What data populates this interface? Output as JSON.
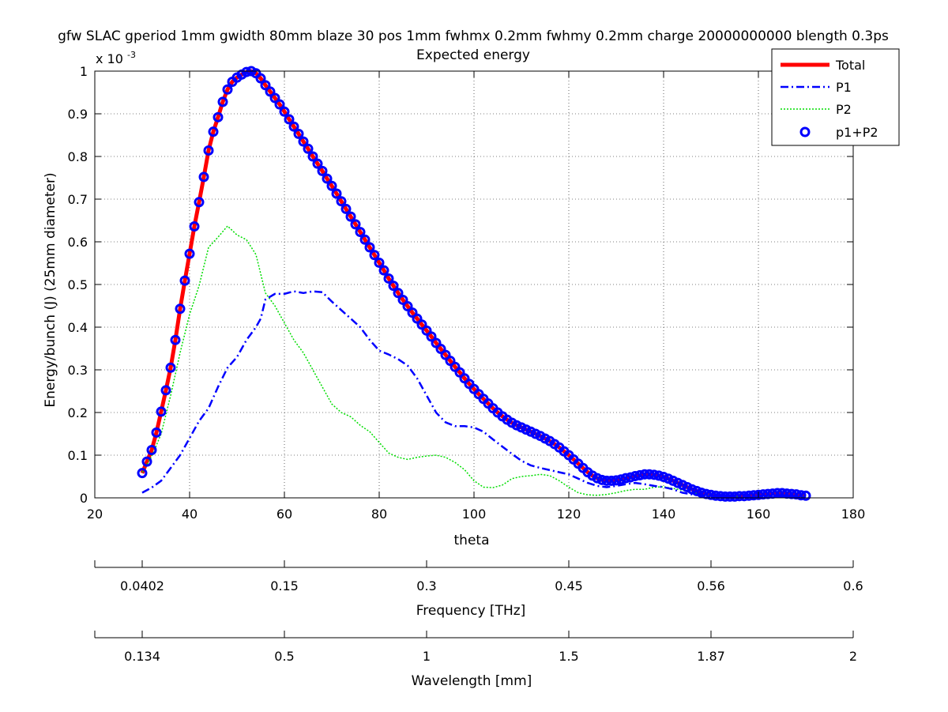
{
  "chart_data": {
    "type": "line",
    "title": "gfw SLAC gperiod 1mm gwidth 80mm blaze 30 pos 1mm fwhmx 0.2mm fwhmy 0.2mm charge 20000000000 blength 0.3ps",
    "subtitle": "Expected energy",
    "xlabel": "theta",
    "ylabel": "Energy/bunch (J) (25mm diameter)",
    "y_multiplier": "x 10",
    "y_multiplier_exp": "-3",
    "xlim": [
      20,
      180
    ],
    "ylim": [
      0,
      0.001
    ],
    "x_ticks": [
      "20",
      "40",
      "60",
      "80",
      "100",
      "120",
      "140",
      "160",
      "180"
    ],
    "y_ticks": [
      "0",
      "0.1",
      "0.2",
      "0.3",
      "0.4",
      "0.5",
      "0.6",
      "0.7",
      "0.8",
      "0.9",
      "1"
    ],
    "grid": true,
    "legend_position": "top-right",
    "series": [
      {
        "name": "Total",
        "color": "#ff0000",
        "style": "solid",
        "x": [
          30,
          31,
          32,
          33,
          34,
          35,
          36,
          37,
          38,
          39,
          40,
          41,
          42,
          43,
          44,
          45,
          46,
          47,
          48,
          49,
          50,
          51,
          52,
          53,
          54,
          55,
          56,
          57,
          58,
          59,
          60,
          61,
          62,
          63,
          64,
          65,
          66,
          67,
          68,
          69,
          70,
          71,
          72,
          73,
          74,
          75,
          76,
          77,
          78,
          79,
          80,
          81,
          82,
          83,
          84,
          85,
          86,
          87,
          88,
          89,
          90,
          91,
          92,
          93,
          94,
          95,
          96,
          97,
          98,
          99,
          100,
          101,
          102,
          103,
          104,
          105,
          106,
          107,
          108,
          109,
          110,
          111,
          112,
          113,
          114,
          115,
          116,
          117,
          118,
          119,
          120,
          121,
          122,
          123,
          124,
          125,
          126,
          127,
          128,
          129,
          130,
          131,
          132,
          133,
          134,
          135,
          136,
          137,
          138,
          139,
          140,
          141,
          142,
          143,
          144,
          145,
          146,
          147,
          148,
          149,
          150,
          151,
          152,
          153,
          154,
          155,
          156,
          157,
          158,
          159,
          160,
          161,
          162,
          163,
          164,
          165,
          166,
          167,
          168,
          169,
          170
        ],
        "values": [
          5.8e-05,
          8.5e-05,
          0.000112,
          0.000153,
          0.000202,
          0.000252,
          0.000305,
          0.00037,
          0.000443,
          0.000509,
          0.000572,
          0.000636,
          0.000693,
          0.000752,
          0.000814,
          0.000858,
          0.000892,
          0.000928,
          0.000957,
          0.000975,
          0.000985,
          0.000992,
          0.000998,
          0.001,
          0.000995,
          0.000983,
          0.000967,
          0.000952,
          0.000937,
          0.000922,
          0.000905,
          0.000887,
          0.00087,
          0.000853,
          0.000835,
          0.000818,
          0.0008,
          0.000783,
          0.000766,
          0.000748,
          0.000731,
          0.000713,
          0.000695,
          0.000677,
          0.000659,
          0.000641,
          0.000623,
          0.000605,
          0.000587,
          0.000569,
          0.000551,
          0.000533,
          0.000514,
          0.000497,
          0.00048,
          0.000464,
          0.000449,
          0.000434,
          0.00042,
          0.000406,
          0.000392,
          0.000378,
          0.000363,
          0.000349,
          0.000335,
          0.000321,
          0.000307,
          0.000294,
          0.00028,
          0.000267,
          0.000255,
          0.000243,
          0.000232,
          0.000221,
          0.00021,
          0.0002,
          0.000191,
          0.000183,
          0.000176,
          0.00017,
          0.000165,
          0.00016,
          0.000155,
          0.00015,
          0.000145,
          0.000139,
          0.000133,
          0.000126,
          0.000118,
          0.000109,
          0.0001,
          9e-05,
          8e-05,
          7e-05,
          6e-05,
          5.2e-05,
          4.6e-05,
          4.2e-05,
          4e-05,
          4e-05,
          4.1e-05,
          4.3e-05,
          4.6e-05,
          4.8e-05,
          5.1e-05,
          5.3e-05,
          5.5e-05,
          5.5e-05,
          5.4e-05,
          5.2e-05,
          4.9e-05,
          4.5e-05,
          4e-05,
          3.5e-05,
          3e-05,
          2.5e-05,
          2e-05,
          1.6e-05,
          1.2e-05,
          9e-06,
          7e-06,
          5e-06,
          4e-06,
          3e-06,
          3e-06,
          3e-06,
          4e-06,
          4e-06,
          5e-06,
          6e-06,
          7e-06,
          8e-06,
          9e-06,
          1e-05,
          1.1e-05,
          1.1e-05,
          1e-05,
          9e-06,
          8e-06,
          6e-06,
          5e-06
        ]
      },
      {
        "name": "P1",
        "color": "#0000ff",
        "style": "dashdot",
        "x": [
          30,
          32,
          34,
          36,
          38,
          40,
          42,
          44,
          46,
          48,
          50,
          52,
          54,
          55,
          56,
          58,
          60,
          62,
          64,
          66,
          68,
          70,
          72,
          74,
          76,
          78,
          80,
          82,
          84,
          86,
          88,
          90,
          92,
          94,
          96,
          98,
          100,
          102,
          104,
          106,
          108,
          110,
          112,
          114,
          116,
          118,
          120,
          122,
          124,
          126,
          128,
          130,
          132,
          134,
          136,
          138,
          140,
          142,
          144,
          146,
          148,
          150,
          152,
          154,
          156,
          158,
          160,
          162,
          164,
          166,
          168,
          170
        ],
        "values": [
          1.2e-05,
          2.4e-05,
          4e-05,
          7e-05,
          0.0001,
          0.00014,
          0.00018,
          0.00021,
          0.00026,
          0.000305,
          0.00033,
          0.00037,
          0.0004,
          0.00042,
          0.000465,
          0.000478,
          0.000478,
          0.000484,
          0.00048,
          0.000484,
          0.000482,
          0.00046,
          0.00044,
          0.00042,
          0.0004,
          0.00037,
          0.000345,
          0.000336,
          0.000325,
          0.00031,
          0.00028,
          0.00024,
          0.0002,
          0.000177,
          0.000168,
          0.000168,
          0.000165,
          0.000155,
          0.000137,
          0.00012,
          0.000103,
          8.7e-05,
          7.6e-05,
          7e-05,
          6.5e-05,
          6e-05,
          5.5e-05,
          4.5e-05,
          3.5e-05,
          2.8e-05,
          2.5e-05,
          2.8e-05,
          3.2e-05,
          3.5e-05,
          3.2e-05,
          2.8e-05,
          2.5e-05,
          2e-05,
          1.2e-05,
          8e-06,
          6e-06,
          5e-06,
          4e-06,
          4e-06,
          4e-06,
          4e-06,
          5e-06,
          5e-06,
          5e-06,
          5e-06,
          4e-06,
          3e-06
        ]
      },
      {
        "name": "P2",
        "color": "#00dd00",
        "style": "dotted",
        "x": [
          30,
          32,
          34,
          36,
          38,
          40,
          42,
          44,
          46,
          48,
          50,
          52,
          54,
          56,
          58,
          60,
          62,
          64,
          66,
          68,
          70,
          72,
          74,
          76,
          78,
          80,
          82,
          84,
          86,
          88,
          90,
          92,
          94,
          96,
          98,
          100,
          102,
          104,
          106,
          108,
          110,
          112,
          114,
          116,
          118,
          120,
          122,
          124,
          126,
          128,
          130,
          132,
          134,
          136,
          138,
          140,
          142,
          144,
          146,
          148,
          150,
          152,
          154,
          156,
          158,
          160,
          162,
          164,
          166,
          168,
          170
        ],
        "values": [
          6e-05,
          9.7e-05,
          0.00015,
          0.00024,
          0.00034,
          0.00043,
          0.000497,
          0.000587,
          0.000611,
          0.000637,
          0.000616,
          0.000605,
          0.00057,
          0.00048,
          0.00045,
          0.00041,
          0.00037,
          0.00034,
          0.0003,
          0.00026,
          0.00022,
          0.0002,
          0.00019,
          0.00017,
          0.000155,
          0.00013,
          0.000105,
          9.5e-05,
          9e-05,
          9.5e-05,
          9.8e-05,
          0.0001,
          9.5e-05,
          8.3e-05,
          6.6e-05,
          4e-05,
          2.5e-05,
          2.4e-05,
          3e-05,
          4.5e-05,
          5e-05,
          5.2e-05,
          5.5e-05,
          5.2e-05,
          4e-05,
          2.5e-05,
          1.2e-05,
          7e-06,
          6e-06,
          8e-06,
          1.2e-05,
          1.7e-05,
          2e-05,
          2e-05,
          2.5e-05,
          2.6e-05,
          2.2e-05,
          1.8e-05,
          1.2e-05,
          8e-06,
          5e-06,
          4e-06,
          3e-06,
          3e-06,
          3e-06,
          3e-06,
          3e-06,
          3e-06,
          3e-06,
          3e-06,
          3e-06
        ]
      },
      {
        "name": "p1+P2",
        "color": "#0000ff",
        "style": "markers",
        "x": [
          30,
          31,
          32,
          33,
          34,
          35,
          36,
          37,
          38,
          39,
          40,
          41,
          42,
          43,
          44,
          45,
          46,
          47,
          48,
          49,
          50,
          51,
          52,
          53,
          54,
          55,
          56,
          57,
          58,
          59,
          60,
          61,
          62,
          63,
          64,
          65,
          66,
          67,
          68,
          69,
          70,
          71,
          72,
          73,
          74,
          75,
          76,
          77,
          78,
          79,
          80,
          81,
          82,
          83,
          84,
          85,
          86,
          87,
          88,
          89,
          90,
          91,
          92,
          93,
          94,
          95,
          96,
          97,
          98,
          99,
          100,
          101,
          102,
          103,
          104,
          105,
          106,
          107,
          108,
          109,
          110,
          111,
          112,
          113,
          114,
          115,
          116,
          117,
          118,
          119,
          120,
          121,
          122,
          123,
          124,
          125,
          126,
          127,
          128,
          129,
          130,
          131,
          132,
          133,
          134,
          135,
          136,
          137,
          138,
          139,
          140,
          141,
          142,
          143,
          144,
          145,
          146,
          147,
          148,
          149,
          150,
          151,
          152,
          153,
          154,
          155,
          156,
          157,
          158,
          159,
          160,
          161,
          162,
          163,
          164,
          165,
          166,
          167,
          168,
          169,
          170
        ],
        "values": [
          5.8e-05,
          8.5e-05,
          0.000112,
          0.000153,
          0.000202,
          0.000252,
          0.000305,
          0.00037,
          0.000443,
          0.000509,
          0.000572,
          0.000636,
          0.000693,
          0.000752,
          0.000814,
          0.000858,
          0.000892,
          0.000928,
          0.000957,
          0.000975,
          0.000985,
          0.000992,
          0.000998,
          0.001,
          0.000995,
          0.000983,
          0.000967,
          0.000952,
          0.000937,
          0.000922,
          0.000905,
          0.000887,
          0.00087,
          0.000853,
          0.000835,
          0.000818,
          0.0008,
          0.000783,
          0.000766,
          0.000748,
          0.000731,
          0.000713,
          0.000695,
          0.000677,
          0.000659,
          0.000641,
          0.000623,
          0.000605,
          0.000587,
          0.000569,
          0.000551,
          0.000533,
          0.000514,
          0.000497,
          0.00048,
          0.000464,
          0.000449,
          0.000434,
          0.00042,
          0.000406,
          0.000392,
          0.000378,
          0.000363,
          0.000349,
          0.000335,
          0.000321,
          0.000307,
          0.000294,
          0.00028,
          0.000267,
          0.000255,
          0.000243,
          0.000232,
          0.000221,
          0.00021,
          0.0002,
          0.000191,
          0.000183,
          0.000176,
          0.00017,
          0.000165,
          0.00016,
          0.000155,
          0.00015,
          0.000145,
          0.000139,
          0.000133,
          0.000126,
          0.000118,
          0.000109,
          0.0001,
          9e-05,
          8e-05,
          7e-05,
          6e-05,
          5.2e-05,
          4.6e-05,
          4.2e-05,
          4e-05,
          4e-05,
          4.1e-05,
          4.3e-05,
          4.6e-05,
          4.8e-05,
          5.1e-05,
          5.3e-05,
          5.5e-05,
          5.5e-05,
          5.4e-05,
          5.2e-05,
          4.9e-05,
          4.5e-05,
          4e-05,
          3.5e-05,
          3e-05,
          2.5e-05,
          2e-05,
          1.6e-05,
          1.2e-05,
          9e-06,
          7e-06,
          5e-06,
          4e-06,
          3e-06,
          3e-06,
          3e-06,
          4e-06,
          4e-06,
          5e-06,
          6e-06,
          7e-06,
          8e-06,
          9e-06,
          1e-05,
          1.1e-05,
          1.1e-05,
          1e-05,
          9e-06,
          8e-06,
          6e-06,
          5e-06
        ]
      }
    ],
    "secondary_axes": [
      {
        "label": "Frequency [THz]",
        "tick_labels": [
          "0.0402",
          "0.15",
          "0.3",
          "0.45",
          "0.56",
          "0.6"
        ],
        "tick_theta": [
          30,
          60,
          90,
          120,
          150,
          180
        ]
      },
      {
        "label": "Wavelength [mm]",
        "tick_labels": [
          "0.134",
          "0.5",
          "1",
          "1.5",
          "1.87",
          "2"
        ],
        "tick_theta": [
          30,
          60,
          90,
          120,
          150,
          180
        ]
      }
    ]
  }
}
